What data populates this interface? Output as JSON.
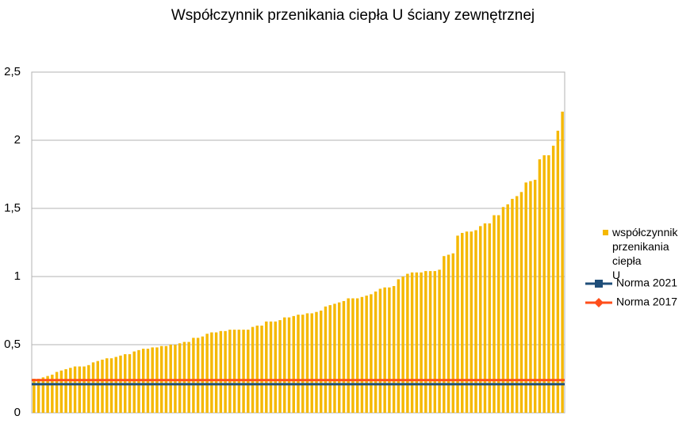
{
  "chart_data": {
    "type": "bar",
    "title": "Współczynnik przenikania ciepła U ściany zewnętrznej",
    "categories": [
      null,
      null,
      null,
      null,
      null,
      null,
      null,
      null,
      null,
      null,
      null,
      null,
      null,
      null,
      null,
      null,
      null,
      null,
      null,
      null,
      null,
      null,
      null,
      null,
      null,
      null,
      null,
      null,
      null,
      null,
      null,
      null,
      null,
      null,
      null,
      null,
      null,
      null,
      null,
      null,
      null,
      null,
      null,
      null,
      null,
      null,
      null,
      null,
      null,
      null,
      null,
      null,
      null,
      null,
      null,
      null,
      null,
      null,
      null,
      null,
      null,
      null,
      null,
      null,
      null,
      null,
      null,
      null,
      null,
      null,
      null,
      null,
      null,
      null,
      null,
      null,
      null,
      null,
      null,
      null,
      null,
      null,
      null,
      null,
      null,
      null,
      null,
      null,
      null,
      null,
      null,
      null,
      null,
      null,
      null,
      null,
      null,
      null,
      null,
      null,
      null,
      null,
      null,
      null,
      null,
      null,
      null,
      null,
      null,
      null,
      null,
      null,
      null,
      null,
      null,
      null,
      null
    ],
    "series": [
      {
        "name": "współczynnik przenikania ciepła U",
        "color": "#f5b800",
        "values": [
          0.25,
          0.25,
          0.26,
          0.27,
          0.28,
          0.3,
          0.31,
          0.32,
          0.33,
          0.34,
          0.34,
          0.34,
          0.35,
          0.37,
          0.38,
          0.39,
          0.4,
          0.4,
          0.41,
          0.42,
          0.43,
          0.43,
          0.45,
          0.46,
          0.47,
          0.47,
          0.48,
          0.48,
          0.49,
          0.49,
          0.5,
          0.5,
          0.51,
          0.52,
          0.52,
          0.55,
          0.55,
          0.56,
          0.58,
          0.59,
          0.59,
          0.6,
          0.6,
          0.61,
          0.61,
          0.61,
          0.61,
          0.61,
          0.63,
          0.64,
          0.64,
          0.67,
          0.67,
          0.67,
          0.68,
          0.7,
          0.7,
          0.71,
          0.72,
          0.72,
          0.73,
          0.73,
          0.74,
          0.75,
          0.78,
          0.79,
          0.8,
          0.81,
          0.82,
          0.84,
          0.84,
          0.84,
          0.85,
          0.86,
          0.87,
          0.89,
          0.91,
          0.92,
          0.92,
          0.93,
          0.98,
          1.0,
          1.02,
          1.03,
          1.03,
          1.03,
          1.04,
          1.04,
          1.04,
          1.05,
          1.15,
          1.16,
          1.17,
          1.3,
          1.32,
          1.33,
          1.33,
          1.34,
          1.37,
          1.39,
          1.39,
          1.45,
          1.45,
          1.51,
          1.53,
          1.57,
          1.59,
          1.62,
          1.69,
          1.7,
          1.71,
          1.86,
          1.89,
          1.89,
          1.96,
          2.07,
          2.21
        ]
      }
    ],
    "reference_lines": [
      {
        "name": "Norma 2021",
        "color": "#1f4e79",
        "value": 0.21,
        "marker": "square"
      },
      {
        "name": "Norma 2017",
        "color": "#ff4e1a",
        "value": 0.24,
        "marker": "diamond"
      }
    ],
    "ylim": [
      0,
      2.5
    ],
    "yticks": [
      0,
      {
        "value": 0.5,
        "label": "0,5"
      },
      1,
      {
        "value": 1.5,
        "label": "1,5"
      },
      2,
      {
        "value": 2.5,
        "label": "2,5"
      }
    ],
    "grid": true
  }
}
